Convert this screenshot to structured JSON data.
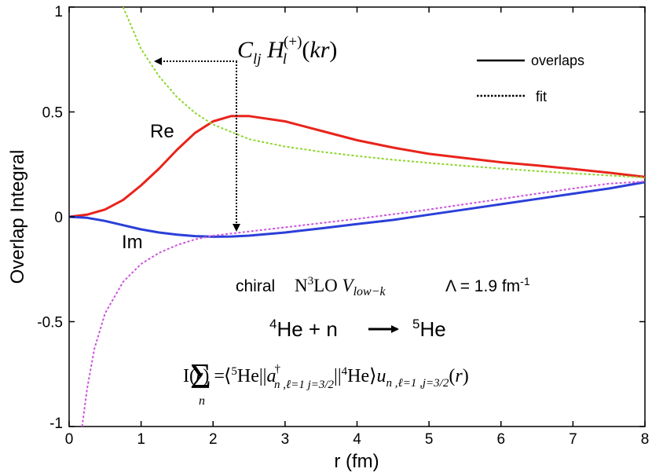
{
  "chart_data": {
    "type": "line",
    "xlabel": "r (fm)",
    "ylabel": "Overlap Integral",
    "xlim": [
      0,
      8
    ],
    "ylim": [
      -1,
      1
    ],
    "x_ticks": [
      "0",
      "1",
      "2",
      "3",
      "4",
      "5",
      "6",
      "7",
      "8"
    ],
    "y_ticks": [
      "-1",
      "-0.5",
      "0",
      "0.5",
      "1"
    ],
    "grid": false,
    "legend": {
      "placement": "top-right",
      "entries": [
        {
          "label": "overlaps",
          "style": "solid"
        },
        {
          "label": "fit",
          "style": "dotted"
        }
      ]
    },
    "series": [
      {
        "name": "Re",
        "style": "solid",
        "color": "#e8241c",
        "x": [
          0,
          0.25,
          0.5,
          0.75,
          1,
          1.25,
          1.5,
          1.75,
          2,
          2.25,
          2.5,
          3,
          3.5,
          4,
          4.5,
          5,
          5.5,
          6,
          6.5,
          7,
          7.5,
          8
        ],
        "y": [
          0,
          0.01,
          0.035,
          0.08,
          0.15,
          0.23,
          0.32,
          0.4,
          0.455,
          0.48,
          0.48,
          0.455,
          0.41,
          0.365,
          0.33,
          0.3,
          0.28,
          0.26,
          0.245,
          0.228,
          0.21,
          0.19
        ]
      },
      {
        "name": "Im",
        "style": "solid",
        "color": "#2b3fd8",
        "x": [
          0,
          0.25,
          0.5,
          0.75,
          1,
          1.25,
          1.5,
          1.75,
          2,
          2.25,
          2.5,
          3,
          3.5,
          4,
          4.5,
          5,
          5.5,
          6,
          6.5,
          7,
          7.5,
          8
        ],
        "y": [
          0,
          -0.005,
          -0.02,
          -0.04,
          -0.06,
          -0.075,
          -0.085,
          -0.092,
          -0.095,
          -0.094,
          -0.09,
          -0.075,
          -0.055,
          -0.035,
          -0.015,
          0.01,
          0.035,
          0.06,
          0.085,
          0.11,
          0.135,
          0.165
        ]
      },
      {
        "name": "",
        "style": "dotted",
        "color": "#8ed62a",
        "x": [
          0.75,
          1,
          1.25,
          1.5,
          1.75,
          2,
          2.5,
          3,
          3.5,
          4,
          4.5,
          5,
          5.5,
          6,
          6.5,
          7,
          7.5,
          8
        ],
        "y": [
          1.0,
          0.8,
          0.67,
          0.57,
          0.495,
          0.44,
          0.37,
          0.335,
          0.31,
          0.29,
          0.272,
          0.257,
          0.243,
          0.23,
          0.218,
          0.207,
          0.197,
          0.187
        ]
      },
      {
        "name": "",
        "style": "dotted",
        "color": "#cc55dd",
        "x": [
          0.18,
          0.25,
          0.35,
          0.5,
          0.75,
          1,
          1.25,
          1.5,
          1.75,
          2,
          2.5,
          3,
          3.5,
          4,
          4.5,
          5,
          5.5,
          6,
          6.5,
          7,
          7.5,
          8
        ],
        "y": [
          -1.0,
          -0.82,
          -0.63,
          -0.46,
          -0.31,
          -0.225,
          -0.172,
          -0.135,
          -0.108,
          -0.09,
          -0.07,
          -0.05,
          -0.03,
          -0.01,
          0.012,
          0.035,
          0.06,
          0.085,
          0.11,
          0.135,
          0.158,
          0.168
        ]
      }
    ],
    "annotations": {
      "re_label": "Re",
      "im_label": "Im",
      "fit_formula": "C_{lj} H_l^{(+)}(kr)",
      "chiral": "chiral",
      "potential": "N³LO V_low−k",
      "cutoff": "Λ = 1.9 fm⁻¹",
      "reaction": "⁴He + n → ⁵He",
      "overlap_formula": "I(r) = Σ_n ⟨⁵He||a†_{n,ℓ=1 j=3/2}||⁴He⟩ u_{n,ℓ=1,j=3/2}(r)"
    }
  }
}
